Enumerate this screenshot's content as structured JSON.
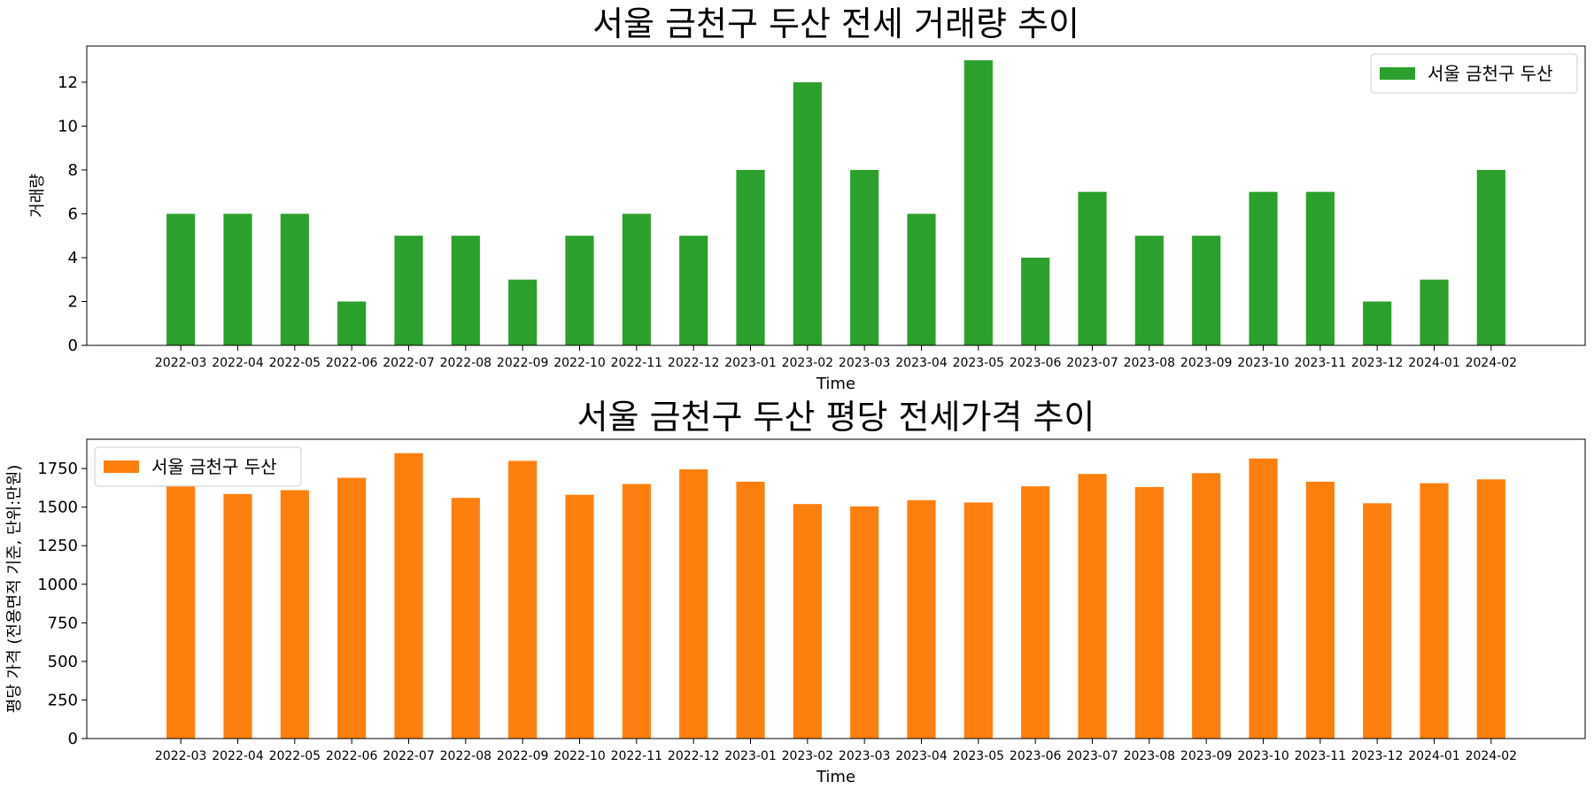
{
  "chart_data": [
    {
      "type": "bar",
      "title": "서울 금천구 두산 전세 거래량 추이",
      "xlabel": "Time",
      "ylabel": "거래량",
      "categories": [
        "2022-03",
        "2022-04",
        "2022-05",
        "2022-06",
        "2022-07",
        "2022-08",
        "2022-09",
        "2022-10",
        "2022-11",
        "2022-12",
        "2023-01",
        "2023-02",
        "2023-03",
        "2023-04",
        "2023-05",
        "2023-06",
        "2023-07",
        "2023-08",
        "2023-09",
        "2023-10",
        "2023-11",
        "2023-12",
        "2024-01",
        "2024-02"
      ],
      "series": [
        {
          "name": "서울 금천구 두산",
          "color": "#2ca02c",
          "values": [
            6,
            6,
            6,
            2,
            5,
            5,
            3,
            5,
            6,
            5,
            8,
            12,
            8,
            6,
            13,
            4,
            7,
            5,
            5,
            7,
            7,
            2,
            3,
            8
          ]
        }
      ],
      "ylim": [
        0,
        13.65
      ],
      "yticks": [
        0,
        2,
        4,
        6,
        8,
        10,
        12
      ],
      "grid": false,
      "legend": "top-right"
    },
    {
      "type": "bar",
      "title": "서울 금천구 두산 평당 전세가격 추이",
      "xlabel": "Time",
      "ylabel": "평당 가격 (전용면적 기준, 단위:만원)",
      "categories": [
        "2022-03",
        "2022-04",
        "2022-05",
        "2022-06",
        "2022-07",
        "2022-08",
        "2022-09",
        "2022-10",
        "2022-11",
        "2022-12",
        "2023-01",
        "2023-02",
        "2023-03",
        "2023-04",
        "2023-05",
        "2023-06",
        "2023-07",
        "2023-08",
        "2023-09",
        "2023-10",
        "2023-11",
        "2023-12",
        "2024-01",
        "2024-02"
      ],
      "series": [
        {
          "name": "서울 금천구 두산",
          "color": "#ff7f0e",
          "values": [
            1640,
            1585,
            1610,
            1690,
            1850,
            1560,
            1800,
            1580,
            1650,
            1745,
            1665,
            1520,
            1505,
            1545,
            1530,
            1635,
            1715,
            1630,
            1720,
            1815,
            1665,
            1525,
            1655,
            1680
          ]
        }
      ],
      "ylim": [
        0,
        1940
      ],
      "yticks": [
        0,
        250,
        500,
        750,
        1000,
        1250,
        1500,
        1750
      ],
      "grid": false,
      "legend": "top-left"
    }
  ]
}
